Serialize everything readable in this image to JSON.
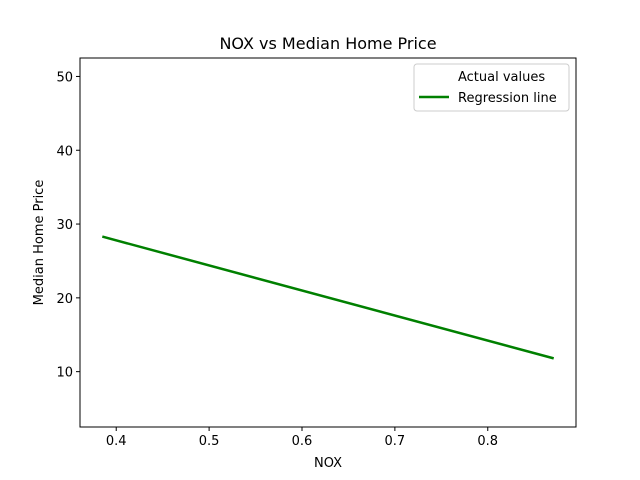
{
  "chart_data": {
    "type": "line",
    "title": "NOX vs Median Home Price",
    "xlabel": "NOX",
    "ylabel": "Median Home Price",
    "xlim": [
      0.361,
      0.895
    ],
    "ylim": [
      2.5,
      52.5
    ],
    "xticks": [
      0.4,
      0.5,
      0.6,
      0.7,
      0.8
    ],
    "xtick_labels": [
      "0.4",
      "0.5",
      "0.6",
      "0.7",
      "0.8"
    ],
    "yticks": [
      10,
      20,
      30,
      40,
      50
    ],
    "ytick_labels": [
      "10",
      "20",
      "30",
      "40",
      "50"
    ],
    "grid": false,
    "legend_position": "top-right",
    "series": [
      {
        "name": "Actual values",
        "type": "scatter",
        "color": "#1f77b4",
        "points": []
      },
      {
        "name": "Regression line",
        "type": "line",
        "color": "#008000",
        "x": [
          0.385,
          0.871
        ],
        "y": [
          28.3,
          11.8
        ]
      }
    ]
  }
}
